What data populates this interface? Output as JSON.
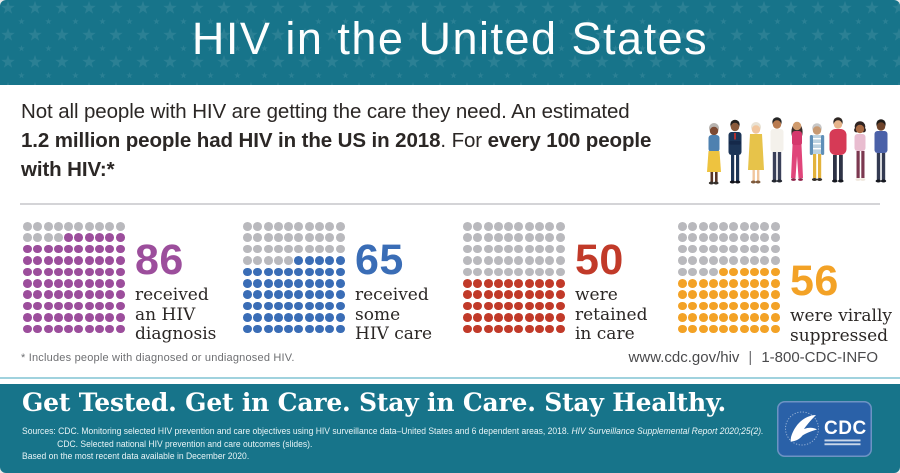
{
  "header": {
    "title": "HIV in the United States"
  },
  "intro": {
    "line1": "Not all people with HIV are getting the care they need. An estimated",
    "bold1": "1.2 million people had HIV in the US in 2018",
    "mid": ". For ",
    "bold2": "every 100 people",
    "bold3": "with HIV:*"
  },
  "stats": [
    {
      "value": 86,
      "label": "86",
      "caption": "received\nan HIV\ndiagnosis",
      "color": "#9c4e9c"
    },
    {
      "value": 65,
      "label": "65",
      "caption": "received\nsome\nHIV care",
      "color": "#3a6db6"
    },
    {
      "value": 50,
      "label": "50",
      "caption": "were\nretained\nin care",
      "color": "#c13a29"
    },
    {
      "value": 56,
      "label": "56",
      "caption": "were virally\nsuppressed",
      "color": "#f3a226"
    }
  ],
  "footnote": "* Includes people with diagnosed or undiagnosed HIV.",
  "contact": {
    "url": "www.cdc.gov/hiv",
    "separator": "|",
    "phone": "1-800-CDC-INFO"
  },
  "footer": {
    "headline": "Get Tested. Get in Care. Stay in Care. Stay Healthy.",
    "sources_label": "Sources: ",
    "source1": "CDC. Monitoring selected HIV prevention and care objectives using HIV surveillance data–United States and 6 dependent areas, 2018. ",
    "source1_italic": "HIV Surveillance Supplemental Report 2020;25(2).",
    "source2": "CDC. Selected national HIV prevention and care outcomes (slides).",
    "source3": "Based on the most recent data available in December 2020.",
    "logo_text": "CDC"
  },
  "colors": {
    "teal": "#17748a",
    "star_teal": "#2b8094",
    "dot_gray": "#b9b9bd",
    "text_dark": "#2b2725",
    "logo_blue": "#2a61a8"
  },
  "chart_data": {
    "type": "bar",
    "style": "waffle (four 10x10 dot grids; per grid, 100-value dots are gray filling from top-left, value dots colored filling toward bottom-right)",
    "title": "For every 100 people with HIV (US, 2018)",
    "categories": [
      "received an HIV diagnosis",
      "received some HIV care",
      "were retained in care",
      "were virally suppressed"
    ],
    "values": [
      86,
      65,
      50,
      56
    ],
    "colors": [
      "#9c4e9c",
      "#3a6db6",
      "#c13a29",
      "#f3a226"
    ],
    "ylim": [
      0,
      100
    ],
    "annotations": [
      "* Includes people with diagnosed or undiagnosed HIV."
    ]
  }
}
